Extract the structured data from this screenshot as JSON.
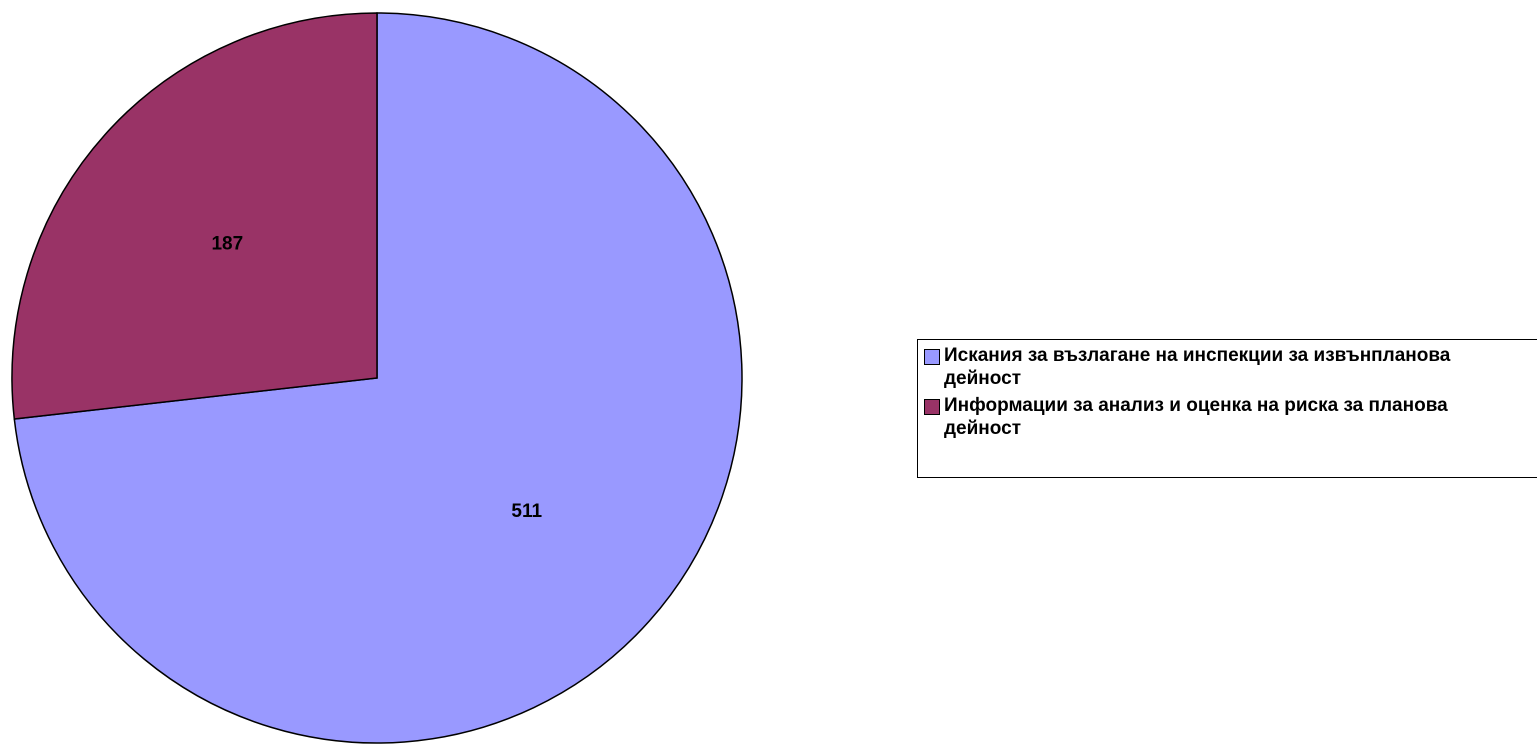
{
  "chart_data": {
    "type": "pie",
    "categories": [
      "Искания за възлагане на инспекции за извънпланова дейност",
      "Информации за анализ и оценка на риска за планова дейност"
    ],
    "values": [
      511,
      187
    ],
    "colors": [
      "#9999FF",
      "#993366"
    ],
    "legend": "right"
  }
}
